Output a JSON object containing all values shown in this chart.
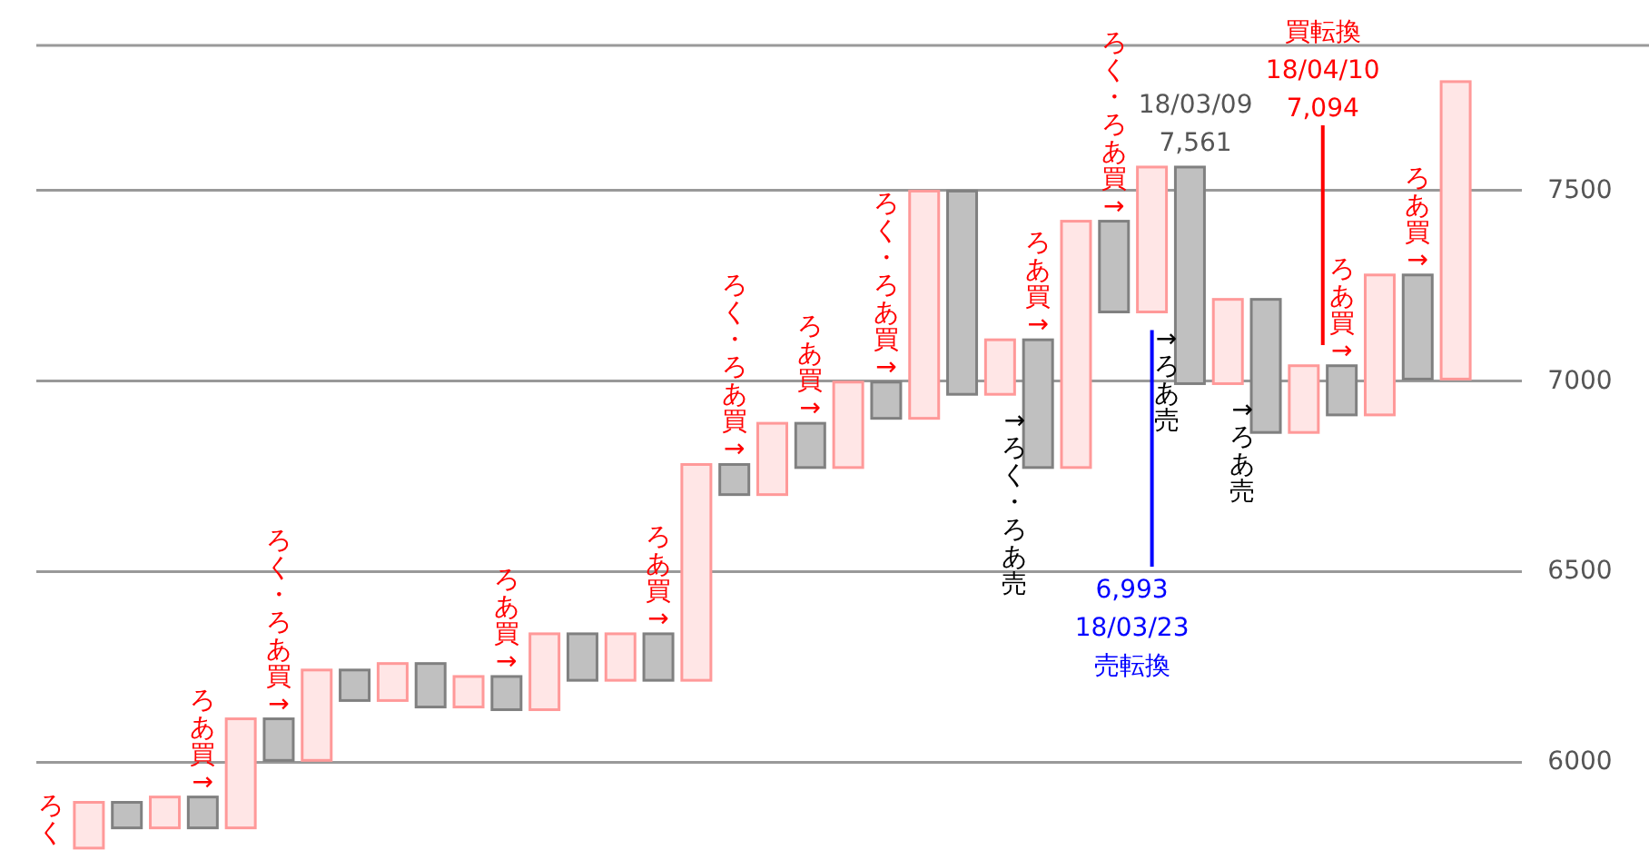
{
  "chart_data": {
    "type": "bar",
    "categories": [
      null,
      null,
      null,
      null,
      null,
      null,
      null,
      null,
      null,
      null,
      null,
      null,
      null,
      null,
      null,
      null,
      null,
      null,
      null,
      null,
      null,
      null,
      null,
      null,
      null,
      null,
      null,
      null,
      null,
      null,
      null,
      null,
      null,
      null,
      null,
      null,
      null
    ],
    "base": [
      5775,
      5895,
      5828,
      5909,
      5828,
      6114,
      6005,
      6242,
      6162,
      6259,
      6145,
      6225,
      6138,
      6337,
      6215,
      6337,
      6215,
      6781,
      6702,
      6889,
      6773,
      6997,
      6902,
      7498,
      6965,
      7108,
      6773,
      7419,
      7181,
      7561,
      6993,
      7214,
      6865,
      7040,
      6911,
      7278,
      7005
    ],
    "values": [
      120,
      -67,
      81,
      -81,
      286,
      -109,
      237,
      -80,
      97,
      -114,
      80,
      -87,
      199,
      -122,
      122,
      -122,
      566,
      -79,
      187,
      -116,
      224,
      -95,
      596,
      -533,
      143,
      -335,
      646,
      -238,
      380,
      -568,
      221,
      -349,
      175,
      -129,
      367,
      -273,
      780
    ],
    "colors": [
      "#ffe6e6",
      "#c0c0c0",
      "#ffe6e6",
      "#c0c0c0",
      "#ffe6e6",
      "#c0c0c0",
      "#ffe6e6",
      "#c0c0c0",
      "#ffe6e6",
      "#c0c0c0",
      "#ffe6e6",
      "#c0c0c0",
      "#ffe6e6",
      "#c0c0c0",
      "#ffe6e6",
      "#c0c0c0",
      "#ffe6e6",
      "#c0c0c0",
      "#ffe6e6",
      "#c0c0c0",
      "#ffe6e6",
      "#c0c0c0",
      "#ffe6e6",
      "#c0c0c0",
      "#ffe6e6",
      "#c0c0c0",
      "#ffe6e6",
      "#c0c0c0",
      "#ffe6e6",
      "#c0c0c0",
      "#ffe6e6",
      "#c0c0c0",
      "#ffe6e6",
      "#c0c0c0",
      "#ffe6e6",
      "#c0c0c0",
      "#ffe6e6"
    ],
    "ylim": [
      5770,
      7880
    ],
    "yticks": [
      6000,
      6500,
      7000,
      7500
    ],
    "grid": "y",
    "tick_labels": "y",
    "annotations": [
      "ろく",
      "ろあ買→",
      "ろく・ろあ買→",
      "ろあ買→",
      "ろあ買→",
      "ろく・ろあ買→",
      "ろあ買→",
      "ろく・ろあ買→",
      "ろあ買→",
      "ろく・ろあ買→",
      "ろあ買→",
      "ろあ買→",
      "→ろく・ろあ売",
      "→ろあ売",
      "→ろあ売",
      "18/03/09\n7,561",
      "買転換\n18/04/10\n7,094",
      "6,993\n18/03/23\n売転換"
    ]
  }
}
